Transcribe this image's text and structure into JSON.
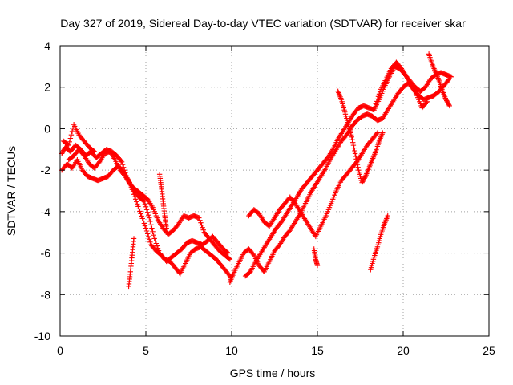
{
  "chart_data": {
    "type": "scatter",
    "title": "Day 327 of 2019, Sidereal Day-to-day VTEC variation (SDTVAR) for receiver skar",
    "xlabel": "GPS time / hours",
    "ylabel": "SDTVAR / TECUs",
    "xlim": [
      0,
      25
    ],
    "ylim": [
      -10,
      4
    ],
    "xticks": [
      0,
      5,
      10,
      15,
      20,
      25
    ],
    "yticks": [
      -10,
      -8,
      -6,
      -4,
      -2,
      0,
      2,
      4
    ],
    "xtick_labels": [
      "0",
      "5",
      "10",
      "15",
      "20",
      "25"
    ],
    "ytick_labels": [
      "-10",
      "-8",
      "-6",
      "-4",
      "-2",
      "0",
      "2",
      "4"
    ],
    "grid": true,
    "marker": "plus",
    "color": "#ff0000",
    "series": [
      {
        "points": [
          [
            0.1,
            -1.2
          ],
          [
            0.3,
            -0.9
          ],
          [
            0.6,
            -1.1
          ],
          [
            0.9,
            -0.8
          ],
          [
            1.2,
            -1.0
          ],
          [
            1.5,
            -1.3
          ],
          [
            1.8,
            -1.1
          ],
          [
            2.1,
            -1.4
          ],
          [
            2.4,
            -1.2
          ],
          [
            2.7,
            -1.0
          ],
          [
            3.0,
            -1.1
          ],
          [
            3.3,
            -1.3
          ],
          [
            3.6,
            -1.6
          ],
          [
            3.9,
            -2.4
          ],
          [
            4.2,
            -2.8
          ],
          [
            4.5,
            -3.0
          ],
          [
            4.8,
            -3.2
          ],
          [
            5.1,
            -3.4
          ],
          [
            5.4,
            -3.8
          ],
          [
            5.7,
            -4.4
          ],
          [
            6.0,
            -4.8
          ],
          [
            6.3,
            -5.1
          ],
          [
            6.6,
            -4.9
          ],
          [
            6.9,
            -4.6
          ],
          [
            7.2,
            -4.2
          ],
          [
            7.5,
            -4.3
          ],
          [
            7.8,
            -4.2
          ],
          [
            8.1,
            -4.3
          ],
          [
            8.4,
            -5.0
          ],
          [
            8.7,
            -5.3
          ],
          [
            9.0,
            -5.6
          ],
          [
            9.3,
            -5.9
          ],
          [
            9.6,
            -6.1
          ],
          [
            9.9,
            -6.3
          ]
        ]
      },
      {
        "points": [
          [
            0.1,
            -2.0
          ],
          [
            0.4,
            -1.7
          ],
          [
            0.7,
            -1.9
          ],
          [
            1.0,
            -1.5
          ],
          [
            1.3,
            -2.0
          ],
          [
            1.6,
            -2.3
          ],
          [
            1.9,
            -2.4
          ],
          [
            2.2,
            -2.5
          ],
          [
            2.5,
            -2.4
          ],
          [
            2.8,
            -2.3
          ],
          [
            3.1,
            -2.0
          ],
          [
            3.4,
            -1.8
          ],
          [
            3.7,
            -2.1
          ],
          [
            4.0,
            -2.5
          ],
          [
            4.3,
            -3.0
          ],
          [
            4.6,
            -3.3
          ],
          [
            4.9,
            -3.5
          ],
          [
            5.2,
            -4.3
          ],
          [
            5.5,
            -5.3
          ],
          [
            5.8,
            -6.0
          ],
          [
            6.1,
            -6.3
          ],
          [
            6.4,
            -6.4
          ],
          [
            6.7,
            -6.7
          ],
          [
            7.0,
            -7.0
          ],
          [
            7.3,
            -6.5
          ],
          [
            7.6,
            -6.0
          ],
          [
            7.9,
            -5.8
          ],
          [
            8.2,
            -5.7
          ],
          [
            8.5,
            -5.9
          ],
          [
            8.8,
            -6.1
          ],
          [
            9.1,
            -6.3
          ],
          [
            9.4,
            -6.6
          ],
          [
            9.7,
            -6.9
          ],
          [
            10.0,
            -7.2
          ]
        ]
      },
      {
        "points": [
          [
            0.5,
            -1.5
          ],
          [
            0.8,
            -1.3
          ],
          [
            1.1,
            -1.0
          ],
          [
            1.4,
            -1.3
          ],
          [
            1.7,
            -1.7
          ],
          [
            2.0,
            -1.9
          ],
          [
            2.3,
            -1.6
          ],
          [
            2.6,
            -1.2
          ],
          [
            2.9,
            -1.1
          ],
          [
            3.2,
            -1.5
          ],
          [
            3.5,
            -2.0
          ],
          [
            3.8,
            -2.3
          ],
          [
            4.1,
            -2.7
          ],
          [
            4.4,
            -3.4
          ],
          [
            4.7,
            -4.1
          ],
          [
            5.0,
            -4.8
          ],
          [
            5.3,
            -5.6
          ],
          [
            5.6,
            -5.9
          ],
          [
            5.9,
            -6.1
          ],
          [
            6.2,
            -6.4
          ],
          [
            6.5,
            -6.2
          ],
          [
            6.8,
            -6.0
          ],
          [
            7.1,
            -5.8
          ],
          [
            7.4,
            -5.5
          ],
          [
            7.7,
            -5.4
          ],
          [
            8.0,
            -5.5
          ],
          [
            8.3,
            -5.6
          ],
          [
            8.6,
            -5.4
          ],
          [
            8.9,
            -5.2
          ],
          [
            9.2,
            -5.5
          ],
          [
            9.5,
            -5.8
          ],
          [
            9.8,
            -6.0
          ]
        ]
      },
      {
        "points": [
          [
            0.2,
            -0.6
          ],
          [
            0.5,
            -0.8
          ],
          [
            0.8,
            0.2
          ],
          [
            1.1,
            -0.3
          ],
          [
            1.4,
            -0.6
          ],
          [
            1.7,
            -0.9
          ],
          [
            2.0,
            -1.1
          ]
        ]
      },
      {
        "points": [
          [
            9.9,
            -7.4
          ],
          [
            10.1,
            -7.0
          ],
          [
            10.4,
            -6.5
          ],
          [
            10.7,
            -6.0
          ],
          [
            11.0,
            -5.8
          ],
          [
            11.3,
            -6.1
          ],
          [
            11.6,
            -6.6
          ],
          [
            11.9,
            -6.9
          ],
          [
            12.2,
            -6.4
          ],
          [
            12.5,
            -5.9
          ],
          [
            12.8,
            -5.6
          ],
          [
            13.1,
            -5.2
          ],
          [
            13.4,
            -4.9
          ],
          [
            13.7,
            -4.5
          ],
          [
            14.0,
            -4.1
          ],
          [
            14.3,
            -3.6
          ],
          [
            14.6,
            -3.1
          ],
          [
            14.9,
            -2.7
          ],
          [
            15.2,
            -2.3
          ],
          [
            15.5,
            -1.9
          ],
          [
            15.8,
            -1.4
          ],
          [
            16.1,
            -1.0
          ],
          [
            16.4,
            -0.6
          ],
          [
            16.7,
            -0.3
          ],
          [
            17.0,
            0.1
          ],
          [
            17.3,
            0.4
          ],
          [
            17.6,
            0.6
          ],
          [
            17.9,
            0.7
          ],
          [
            18.2,
            0.6
          ],
          [
            18.5,
            0.4
          ],
          [
            18.8,
            0.5
          ],
          [
            19.1,
            0.9
          ],
          [
            19.4,
            1.3
          ],
          [
            19.7,
            1.7
          ],
          [
            20.0,
            2.0
          ],
          [
            20.3,
            2.2
          ],
          [
            20.6,
            1.9
          ],
          [
            20.9,
            1.6
          ],
          [
            21.2,
            1.4
          ],
          [
            21.5,
            1.5
          ],
          [
            21.8,
            1.6
          ],
          [
            22.1,
            1.8
          ],
          [
            22.4,
            2.1
          ],
          [
            22.7,
            2.4
          ]
        ]
      },
      {
        "points": [
          [
            10.8,
            -7.1
          ],
          [
            11.1,
            -6.9
          ],
          [
            11.4,
            -6.4
          ],
          [
            11.7,
            -6.0
          ],
          [
            12.0,
            -5.6
          ],
          [
            12.3,
            -5.2
          ],
          [
            12.6,
            -4.8
          ],
          [
            12.9,
            -4.5
          ],
          [
            13.2,
            -4.1
          ],
          [
            13.5,
            -3.7
          ],
          [
            13.8,
            -3.3
          ],
          [
            14.1,
            -2.9
          ],
          [
            14.4,
            -2.6
          ],
          [
            14.7,
            -2.3
          ],
          [
            15.0,
            -2.0
          ],
          [
            15.3,
            -1.7
          ],
          [
            15.6,
            -1.4
          ],
          [
            15.9,
            -1.0
          ],
          [
            16.2,
            -0.5
          ],
          [
            16.5,
            -0.1
          ],
          [
            16.8,
            0.3
          ],
          [
            17.1,
            0.7
          ],
          [
            17.4,
            1.0
          ],
          [
            17.7,
            1.1
          ],
          [
            18.0,
            1.0
          ],
          [
            18.3,
            0.9
          ],
          [
            18.6,
            1.4
          ],
          [
            18.9,
            2.0
          ],
          [
            19.2,
            2.5
          ],
          [
            19.5,
            3.0
          ],
          [
            19.8,
            2.9
          ],
          [
            20.1,
            2.6
          ],
          [
            20.4,
            2.3
          ],
          [
            20.7,
            2.0
          ],
          [
            21.0,
            1.8
          ],
          [
            21.3,
            2.0
          ],
          [
            21.6,
            2.4
          ],
          [
            21.9,
            2.6
          ],
          [
            22.2,
            2.7
          ],
          [
            22.5,
            2.6
          ],
          [
            22.8,
            2.5
          ]
        ]
      },
      {
        "points": [
          [
            11.0,
            -4.2
          ],
          [
            11.3,
            -3.9
          ],
          [
            11.6,
            -4.1
          ],
          [
            11.9,
            -4.5
          ],
          [
            12.2,
            -4.7
          ],
          [
            12.5,
            -4.3
          ],
          [
            12.8,
            -3.9
          ],
          [
            13.1,
            -3.6
          ],
          [
            13.4,
            -3.3
          ],
          [
            13.7,
            -3.6
          ],
          [
            14.0,
            -4.0
          ],
          [
            14.3,
            -4.4
          ],
          [
            14.6,
            -4.8
          ],
          [
            14.9,
            -5.2
          ],
          [
            15.2,
            -4.7
          ],
          [
            15.5,
            -4.2
          ],
          [
            15.8,
            -3.6
          ],
          [
            16.1,
            -3.0
          ],
          [
            16.4,
            -2.5
          ],
          [
            16.7,
            -2.2
          ],
          [
            17.0,
            -1.9
          ],
          [
            17.3,
            -1.6
          ],
          [
            17.6,
            -1.2
          ],
          [
            17.9,
            -0.8
          ],
          [
            18.2,
            -0.5
          ],
          [
            18.5,
            -0.2
          ]
        ]
      },
      {
        "points": [
          [
            16.2,
            1.8
          ],
          [
            16.4,
            1.4
          ],
          [
            16.6,
            0.8
          ],
          [
            16.8,
            0.2
          ],
          [
            17.0,
            -0.4
          ],
          [
            17.2,
            -1.2
          ],
          [
            17.4,
            -2.0
          ],
          [
            17.6,
            -2.6
          ],
          [
            17.8,
            -2.3
          ],
          [
            18.0,
            -1.9
          ],
          [
            18.2,
            -1.5
          ],
          [
            18.4,
            -1.1
          ],
          [
            18.6,
            -0.6
          ],
          [
            18.8,
            -0.2
          ]
        ]
      },
      {
        "points": [
          [
            18.1,
            -6.8
          ],
          [
            18.3,
            -6.2
          ],
          [
            18.5,
            -5.7
          ],
          [
            18.7,
            -5.1
          ],
          [
            18.9,
            -4.6
          ],
          [
            19.1,
            -4.2
          ]
        ]
      },
      {
        "points": [
          [
            21.5,
            3.6
          ],
          [
            21.7,
            3.1
          ],
          [
            21.9,
            2.7
          ],
          [
            22.1,
            2.3
          ],
          [
            22.3,
            1.8
          ],
          [
            22.5,
            1.4
          ],
          [
            22.7,
            1.1
          ]
        ]
      },
      {
        "points": [
          [
            18.4,
            1.2
          ],
          [
            18.7,
            1.9
          ],
          [
            19.0,
            2.4
          ],
          [
            19.3,
            2.9
          ],
          [
            19.6,
            3.2
          ],
          [
            19.9,
            2.9
          ],
          [
            20.2,
            2.5
          ],
          [
            20.5,
            2.1
          ],
          [
            20.8,
            1.6
          ],
          [
            21.1,
            1.0
          ],
          [
            21.4,
            1.3
          ]
        ]
      },
      {
        "points": [
          [
            4.0,
            -7.6
          ],
          [
            4.1,
            -6.9
          ],
          [
            4.2,
            -6.1
          ],
          [
            4.3,
            -5.3
          ]
        ]
      },
      {
        "points": [
          [
            5.8,
            -2.2
          ],
          [
            5.9,
            -2.8
          ],
          [
            6.0,
            -3.5
          ],
          [
            6.1,
            -4.2
          ],
          [
            6.2,
            -4.8
          ]
        ]
      },
      {
        "points": [
          [
            14.8,
            -5.8
          ],
          [
            14.9,
            -6.3
          ],
          [
            15.0,
            -6.6
          ]
        ]
      }
    ]
  }
}
